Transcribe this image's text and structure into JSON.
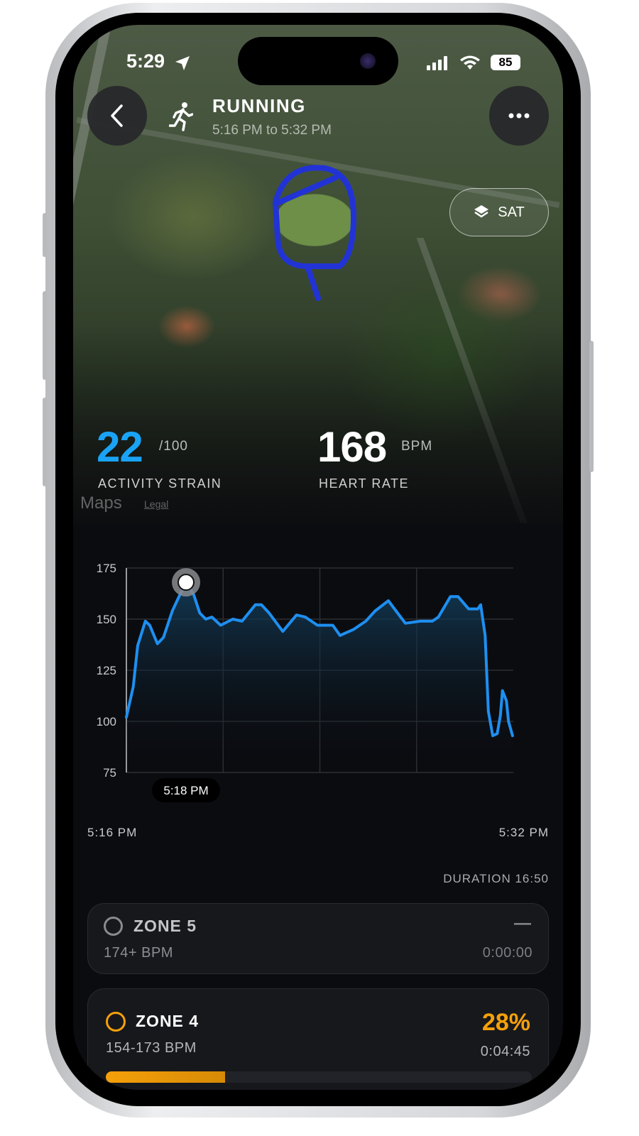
{
  "status_bar": {
    "time": "5:29",
    "battery": "85",
    "icons": [
      "location-arrow-icon",
      "cellular-signal-icon",
      "wifi-icon",
      "battery-icon"
    ]
  },
  "header": {
    "activity": "RUNNING",
    "time_range": "5:16 PM to 5:32 PM",
    "back_icon": "chevron-left-icon",
    "more_icon": "ellipsis-icon",
    "activity_icon": "running-person-icon"
  },
  "map": {
    "layer_button": "SAT",
    "attribution": "Maps",
    "legal": "Legal",
    "route_color": "#2233d6"
  },
  "stats": {
    "strain": {
      "value": "22",
      "max": "/100",
      "label": "ACTIVITY STRAIN",
      "color": "#1aa3f5"
    },
    "heart_rate": {
      "value": "168",
      "unit": "BPM",
      "label": "HEART RATE"
    }
  },
  "chart_data": {
    "type": "area",
    "ylim": [
      75,
      175
    ],
    "yticks": [
      "175",
      "150",
      "125",
      "100",
      "75"
    ],
    "x_start": "5:16 PM",
    "x_end": "5:32 PM",
    "grid": true,
    "line_color": "#1e8ff0",
    "selected": {
      "time": "5:18 PM",
      "value": 168
    },
    "points": [
      [
        "5:16:00",
        102
      ],
      [
        "5:16:17",
        117
      ],
      [
        "5:16:28",
        137
      ],
      [
        "5:16:47",
        149
      ],
      [
        "5:16:58",
        147
      ],
      [
        "5:17:17",
        138
      ],
      [
        "5:17:32",
        141
      ],
      [
        "5:17:54",
        154
      ],
      [
        "5:18:13",
        162
      ],
      [
        "5:18:28",
        168
      ],
      [
        "5:18:47",
        162
      ],
      [
        "5:19:02",
        153
      ],
      [
        "5:19:17",
        150
      ],
      [
        "5:19:32",
        151
      ],
      [
        "5:19:54",
        147
      ],
      [
        "5:20:24",
        150
      ],
      [
        "5:20:47",
        149
      ],
      [
        "5:21:20",
        157
      ],
      [
        "5:21:35",
        157
      ],
      [
        "5:21:54",
        153
      ],
      [
        "5:22:28",
        144
      ],
      [
        "5:23:02",
        152
      ],
      [
        "5:23:24",
        151
      ],
      [
        "5:23:54",
        147
      ],
      [
        "5:24:32",
        147
      ],
      [
        "5:24:50",
        142
      ],
      [
        "5:25:24",
        145
      ],
      [
        "5:25:54",
        149
      ],
      [
        "5:26:17",
        154
      ],
      [
        "5:26:50",
        159
      ],
      [
        "5:27:09",
        154
      ],
      [
        "5:27:32",
        148
      ],
      [
        "5:28:09",
        149
      ],
      [
        "5:28:39",
        149
      ],
      [
        "5:28:54",
        151
      ],
      [
        "5:29:24",
        161
      ],
      [
        "5:29:43",
        161
      ],
      [
        "5:30:09",
        155
      ],
      [
        "5:30:32",
        155
      ],
      [
        "5:30:39",
        157
      ],
      [
        "5:30:50",
        142
      ],
      [
        "5:30:58",
        105
      ],
      [
        "5:31:09",
        93
      ],
      [
        "5:31:20",
        94
      ],
      [
        "5:31:28",
        103
      ],
      [
        "5:31:33",
        115
      ],
      [
        "5:31:43",
        110
      ],
      [
        "5:31:48",
        100
      ],
      [
        "5:31:58",
        93
      ]
    ]
  },
  "duration": "DURATION 16:50",
  "zones": [
    {
      "name": "ZONE 5",
      "range": "174+ BPM",
      "percent": "—",
      "time": "0:00:00",
      "color": "#8a8b8f",
      "fraction": 0
    },
    {
      "name": "ZONE 4",
      "range": "154-173 BPM",
      "percent": "28%",
      "time": "0:04:45",
      "color": "#f5a00a",
      "fraction": 0.28
    }
  ]
}
